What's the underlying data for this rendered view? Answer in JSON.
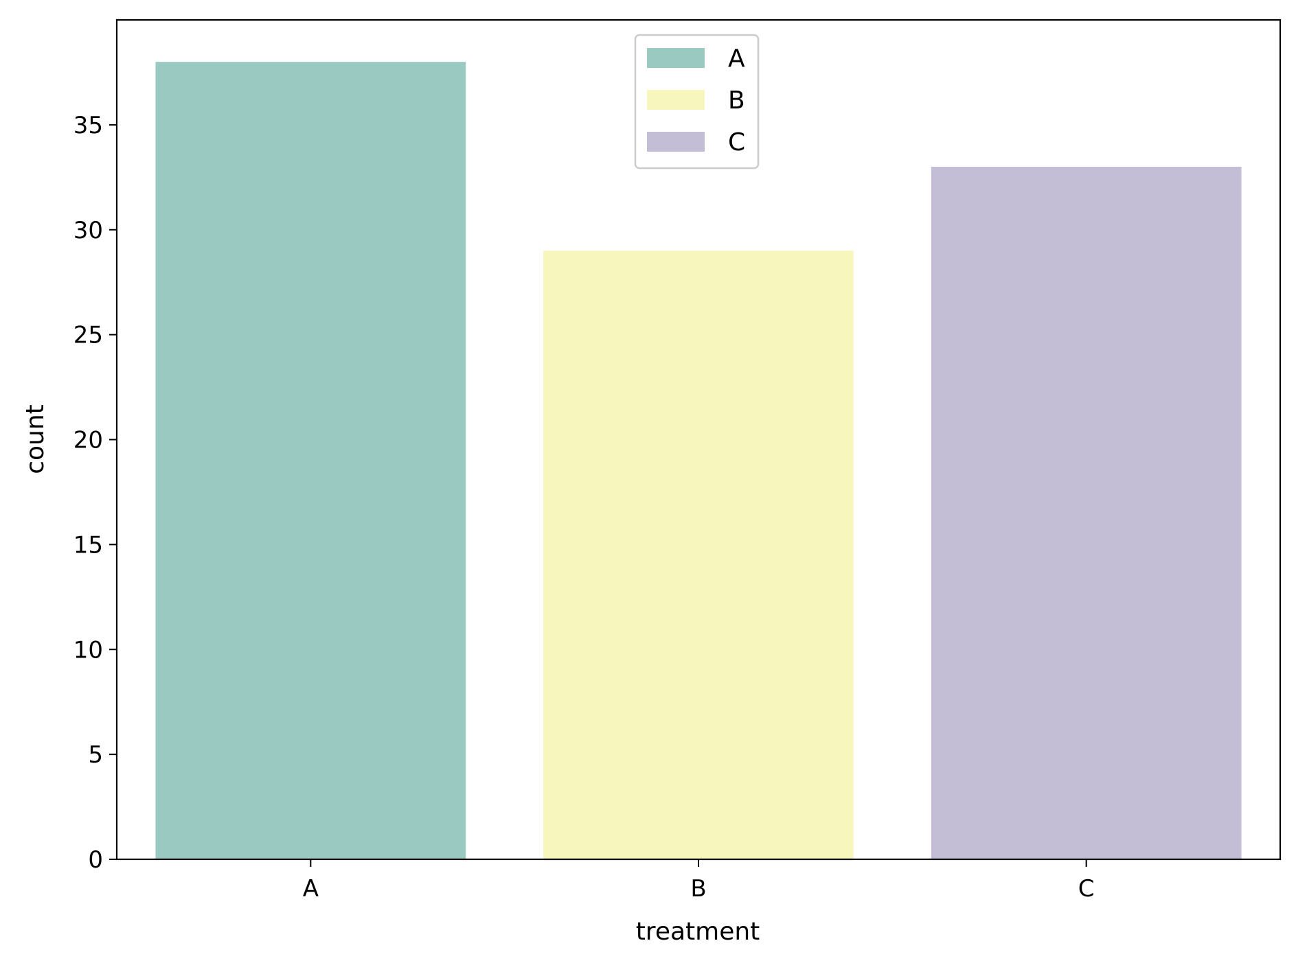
{
  "chart_data": {
    "type": "bar",
    "categories": [
      "A",
      "B",
      "C"
    ],
    "values": [
      38,
      29,
      33
    ],
    "colors": [
      "#99c9c1",
      "#f6f6bd",
      "#c3bdd5"
    ],
    "title": "",
    "xlabel": "treatment",
    "ylabel": "count",
    "ylim": [
      0,
      40
    ],
    "yticks": [
      0,
      5,
      10,
      15,
      20,
      25,
      30,
      35
    ],
    "grid": false,
    "legend": {
      "placement": "upper center",
      "entries": [
        "A",
        "B",
        "C"
      ]
    }
  }
}
